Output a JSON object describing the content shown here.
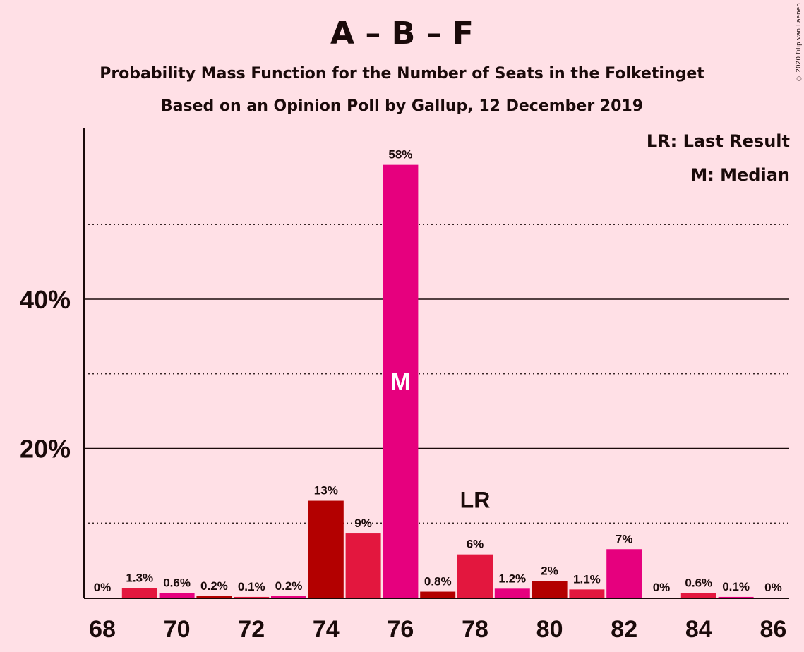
{
  "title": "A – B – F",
  "subtitle": "Probability Mass Function for the Number of Seats in the Folketinget",
  "subtitle2": "Based on an Opinion Poll by Gallup, 12 December 2019",
  "legend": {
    "lr": "LR: Last Result",
    "m": "M: Median"
  },
  "copyright": "© 2020 Filip van Laenen",
  "colors": {
    "background": "#ffe0e6",
    "dark_red": "#b30000",
    "red": "#e3173e",
    "magenta": "#e6007e"
  },
  "chart_data": {
    "type": "bar",
    "x": [
      68,
      69,
      70,
      71,
      72,
      73,
      74,
      75,
      76,
      77,
      78,
      79,
      80,
      81,
      82,
      83,
      84,
      85,
      86
    ],
    "values": [
      0,
      1.3,
      0.6,
      0.2,
      0.1,
      0.2,
      13,
      8.6,
      58,
      0.8,
      5.8,
      1.2,
      2.2,
      1.1,
      6.5,
      0,
      0.6,
      0.1,
      0
    ],
    "labels": [
      "0%",
      "1.3%",
      "0.6%",
      "0.2%",
      "0.1%",
      "0.2%",
      "13%",
      "9%",
      "58%",
      "0.8%",
      "6%",
      "1.2%",
      "2%",
      "1.1%",
      "7%",
      "0%",
      "0.6%",
      "0.1%",
      "0%"
    ],
    "bar_colors": [
      "#e3173e",
      "#e3173e",
      "#e6007e",
      "#b30000",
      "#e3173e",
      "#e6007e",
      "#b30000",
      "#e3173e",
      "#e6007e",
      "#b30000",
      "#e3173e",
      "#e6007e",
      "#b30000",
      "#e3173e",
      "#e6007e",
      "#b30000",
      "#e3173e",
      "#e6007e",
      "#b30000"
    ],
    "x_tick_labels": [
      "68",
      "70",
      "72",
      "74",
      "76",
      "78",
      "80",
      "82",
      "84",
      "86"
    ],
    "y_tick_labels": [
      {
        "value": 20,
        "label": "20%"
      },
      {
        "value": 40,
        "label": "40%"
      }
    ],
    "dotted_gridlines": [
      10,
      30,
      50
    ],
    "ylim": [
      0,
      63
    ],
    "median": {
      "x": 76,
      "label": "M"
    },
    "last_result": {
      "x": 78,
      "label": "LR"
    }
  }
}
